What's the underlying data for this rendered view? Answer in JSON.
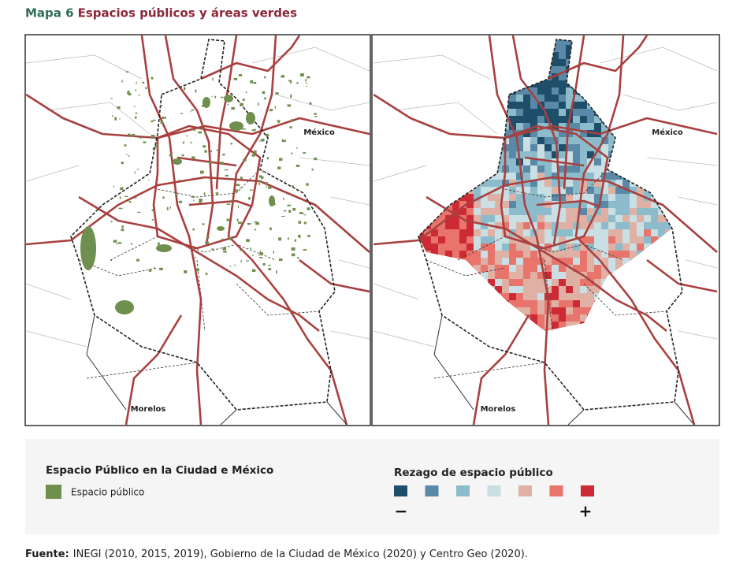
{
  "header": {
    "label": "Mapa 6",
    "title": "Espacios públicos y áreas verdes"
  },
  "maps": {
    "left": {
      "state_north": "México",
      "state_south": "Morelos"
    },
    "right": {
      "state_north": "México",
      "state_south": "Morelos"
    }
  },
  "legend_left": {
    "title": "Espacio Público en la Ciudad e México",
    "item": "Espacio público",
    "color": "#6f8f4e"
  },
  "legend_right": {
    "title": "Rezago de espacio público",
    "colors": [
      "#1f4e6b",
      "#5a89a8",
      "#8cbccb",
      "#c9dfe3",
      "#dfb1a5",
      "#e8746b",
      "#cc2b35"
    ],
    "low": "−",
    "high": "+"
  },
  "source": {
    "label": "Fuente:",
    "text": "INEGI (2010, 2015, 2019), Gobierno de la Ciudad de México (2020) y Centro Geo (2020)."
  }
}
